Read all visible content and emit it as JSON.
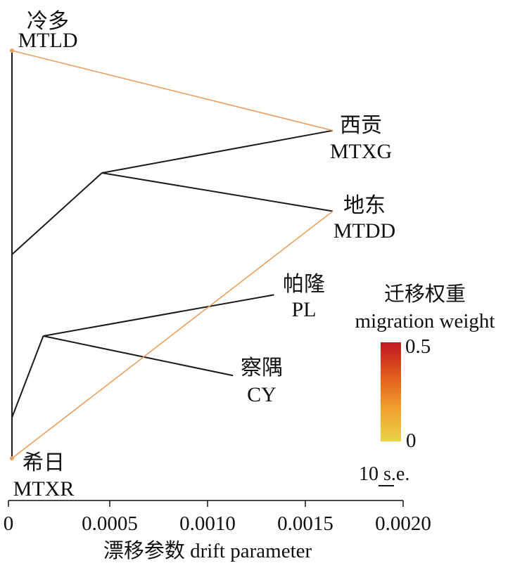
{
  "chart_data": {
    "type": "tree",
    "xlabel": "漂移参数 drift parameter",
    "xlim": [
      0,
      0.002
    ],
    "ticks": [
      {
        "value": 0,
        "label": "0"
      },
      {
        "value": 0.0005,
        "label": "0.0005"
      },
      {
        "value": 0.001,
        "label": "0.0010"
      },
      {
        "value": 0.0015,
        "label": "0.0015"
      },
      {
        "value": 0.002,
        "label": "0.0020"
      }
    ],
    "tree_color": "#1a1a1a",
    "nodes": [
      {
        "id": "root",
        "drift": 0,
        "level": 0.0
      },
      {
        "id": "n1",
        "drift": 0,
        "level": 0.5
      },
      {
        "id": "n2",
        "drift": 0.00046,
        "level": 0.3
      },
      {
        "id": "n3",
        "drift": 0,
        "level": 0.9
      },
      {
        "id": "n4",
        "drift": 0.00016,
        "level": 0.7
      }
    ],
    "leaves": [
      {
        "id": "MTLD",
        "name_cn": "冷多",
        "code": "MTLD",
        "drift": 0,
        "level": 0.0
      },
      {
        "id": "MTXG",
        "name_cn": "西贡",
        "code": "MTXG",
        "drift": 0.00164,
        "level": 0.196
      },
      {
        "id": "MTDD",
        "name_cn": "地东",
        "code": "MTDD",
        "drift": 0.00164,
        "level": 0.394
      },
      {
        "id": "PL",
        "name_cn": "帕隆",
        "code": "PL",
        "drift": 0.00134,
        "level": 0.599
      },
      {
        "id": "CY",
        "name_cn": "察隅",
        "code": "CY",
        "drift": 0.00113,
        "level": 0.797
      },
      {
        "id": "MTXR",
        "name_cn": "希日",
        "code": "MTXR",
        "drift": 0,
        "level": 1.0
      }
    ],
    "edges": [
      {
        "from": "root",
        "to": "MTLD"
      },
      {
        "from": "root",
        "to": "n1"
      },
      {
        "from": "n1",
        "to": "n2"
      },
      {
        "from": "n2",
        "to": "MTXG"
      },
      {
        "from": "n2",
        "to": "MTDD"
      },
      {
        "from": "root",
        "to": "n3"
      },
      {
        "from": "n3",
        "to": "MTXR"
      },
      {
        "from": "n3",
        "to": "n4"
      },
      {
        "from": "n4",
        "to": "PL"
      },
      {
        "from": "n4",
        "to": "CY"
      }
    ],
    "migrations": [
      {
        "from": "MTLD",
        "to": "MTXG",
        "weight": 0.3,
        "color": "#e8a060"
      },
      {
        "from": "MTXR",
        "to": "MTDD",
        "weight": 0.3,
        "color": "#e8a060"
      }
    ],
    "legend": {
      "title_cn": "迁移权重",
      "title_en": "migration weight",
      "max_label": "0.5",
      "min_label": "0",
      "max": 0.5,
      "min": 0,
      "colors": [
        "#e8d44a",
        "#f0a030",
        "#e05a1e",
        "#c01820"
      ],
      "scale_label": "10 s.e."
    }
  }
}
